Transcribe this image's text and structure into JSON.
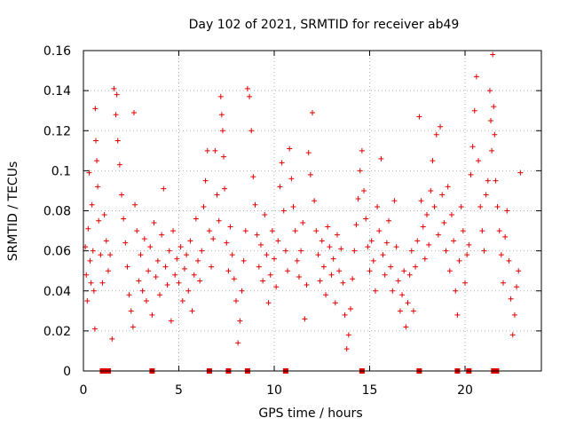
{
  "chart_data": {
    "type": "scatter",
    "title": "Day 102 of 2021, SRMTID for receiver ab49",
    "xlabel": "GPS time / hours",
    "ylabel": "SRMTID / TECUs",
    "xlim": [
      0,
      24
    ],
    "ylim": [
      0,
      0.16
    ],
    "x_ticks": [
      0,
      5,
      10,
      15,
      20
    ],
    "x_tick_labels": [
      "0",
      "5",
      "10",
      "15",
      "20"
    ],
    "y_ticks": [
      0,
      0.02,
      0.04,
      0.06,
      0.08,
      0.1,
      0.12,
      0.14,
      0.16
    ],
    "y_tick_labels": [
      "0",
      "0.02",
      "0.04",
      "0.06",
      "0.08",
      "0.1",
      "0.12",
      "0.14",
      "0.16"
    ],
    "grid": true,
    "marker": "+",
    "color": "#e00000",
    "series": [
      {
        "name": "SRMTID",
        "points": [
          [
            0.1,
            0.062
          ],
          [
            0.15,
            0.048
          ],
          [
            0.2,
            0.035
          ],
          [
            0.25,
            0.071
          ],
          [
            0.3,
            0.099
          ],
          [
            0.35,
            0.055
          ],
          [
            0.4,
            0.044
          ],
          [
            0.45,
            0.083
          ],
          [
            0.5,
            0.06
          ],
          [
            0.55,
            0.04
          ],
          [
            0.6,
            0.021
          ],
          [
            0.62,
            0.131
          ],
          [
            0.65,
            0.115
          ],
          [
            0.7,
            0.105
          ],
          [
            0.75,
            0.092
          ],
          [
            0.8,
            0.075
          ],
          [
            0.9,
            0.058
          ],
          [
            1.0,
            0.044
          ],
          [
            1.1,
            0.078
          ],
          [
            1.2,
            0.065
          ],
          [
            1.3,
            0.05
          ],
          [
            1.4,
            0.058
          ],
          [
            1.5,
            0.016
          ],
          [
            1.6,
            0.141
          ],
          [
            1.7,
            0.128
          ],
          [
            1.75,
            0.138
          ],
          [
            1.8,
            0.115
          ],
          [
            1.9,
            0.103
          ],
          [
            2.0,
            0.088
          ],
          [
            2.1,
            0.076
          ],
          [
            2.2,
            0.064
          ],
          [
            2.3,
            0.052
          ],
          [
            2.4,
            0.038
          ],
          [
            2.5,
            0.03
          ],
          [
            2.6,
            0.022
          ],
          [
            2.65,
            0.129
          ],
          [
            2.7,
            0.083
          ],
          [
            2.8,
            0.07
          ],
          [
            2.9,
            0.045
          ],
          [
            3.0,
            0.058
          ],
          [
            3.1,
            0.04
          ],
          [
            3.2,
            0.066
          ],
          [
            3.3,
            0.035
          ],
          [
            3.4,
            0.05
          ],
          [
            3.5,
            0.062
          ],
          [
            3.6,
            0.028
          ],
          [
            3.7,
            0.074
          ],
          [
            3.8,
            0.047
          ],
          [
            3.9,
            0.055
          ],
          [
            4.0,
            0.038
          ],
          [
            4.1,
            0.068
          ],
          [
            4.2,
            0.091
          ],
          [
            4.3,
            0.052
          ],
          [
            4.4,
            0.043
          ],
          [
            4.5,
            0.06
          ],
          [
            4.6,
            0.025
          ],
          [
            4.7,
            0.07
          ],
          [
            4.8,
            0.048
          ],
          [
            4.9,
            0.056
          ],
          [
            5.0,
            0.044
          ],
          [
            5.1,
            0.062
          ],
          [
            5.2,
            0.035
          ],
          [
            5.3,
            0.051
          ],
          [
            5.4,
            0.058
          ],
          [
            5.5,
            0.04
          ],
          [
            5.6,
            0.065
          ],
          [
            5.7,
            0.03
          ],
          [
            5.8,
            0.048
          ],
          [
            5.9,
            0.076
          ],
          [
            6.0,
            0.055
          ],
          [
            6.1,
            0.045
          ],
          [
            6.2,
            0.06
          ],
          [
            6.3,
            0.082
          ],
          [
            6.4,
            0.095
          ],
          [
            6.5,
            0.11
          ],
          [
            6.6,
            0.07
          ],
          [
            6.7,
            0.052
          ],
          [
            6.8,
            0.066
          ],
          [
            6.9,
            0.11
          ],
          [
            7.0,
            0.088
          ],
          [
            7.1,
            0.075
          ],
          [
            7.2,
            0.137
          ],
          [
            7.25,
            0.128
          ],
          [
            7.3,
            0.12
          ],
          [
            7.35,
            0.107
          ],
          [
            7.4,
            0.091
          ],
          [
            7.5,
            0.064
          ],
          [
            7.6,
            0.05
          ],
          [
            7.7,
            0.072
          ],
          [
            7.8,
            0.058
          ],
          [
            7.9,
            0.046
          ],
          [
            8.0,
            0.035
          ],
          [
            8.1,
            0.014
          ],
          [
            8.2,
            0.025
          ],
          [
            8.3,
            0.04
          ],
          [
            8.4,
            0.055
          ],
          [
            8.5,
            0.07
          ],
          [
            8.6,
            0.141
          ],
          [
            8.7,
            0.137
          ],
          [
            8.8,
            0.12
          ],
          [
            8.9,
            0.097
          ],
          [
            9.0,
            0.083
          ],
          [
            9.1,
            0.068
          ],
          [
            9.2,
            0.052
          ],
          [
            9.3,
            0.063
          ],
          [
            9.4,
            0.045
          ],
          [
            9.5,
            0.078
          ],
          [
            9.6,
            0.058
          ],
          [
            9.7,
            0.034
          ],
          [
            9.8,
            0.048
          ],
          [
            9.9,
            0.07
          ],
          [
            10.0,
            0.056
          ],
          [
            10.1,
            0.042
          ],
          [
            10.2,
            0.065
          ],
          [
            10.3,
            0.092
          ],
          [
            10.4,
            0.104
          ],
          [
            10.5,
            0.08
          ],
          [
            10.6,
            0.06
          ],
          [
            10.7,
            0.05
          ],
          [
            10.8,
            0.111
          ],
          [
            10.9,
            0.096
          ],
          [
            11.0,
            0.082
          ],
          [
            11.1,
            0.07
          ],
          [
            11.2,
            0.055
          ],
          [
            11.3,
            0.047
          ],
          [
            11.4,
            0.06
          ],
          [
            11.5,
            0.074
          ],
          [
            11.6,
            0.026
          ],
          [
            11.7,
            0.043
          ],
          [
            11.8,
            0.109
          ],
          [
            11.9,
            0.098
          ],
          [
            12.0,
            0.129
          ],
          [
            12.1,
            0.085
          ],
          [
            12.2,
            0.07
          ],
          [
            12.3,
            0.058
          ],
          [
            12.4,
            0.045
          ],
          [
            12.5,
            0.065
          ],
          [
            12.6,
            0.052
          ],
          [
            12.7,
            0.038
          ],
          [
            12.8,
            0.072
          ],
          [
            12.9,
            0.062
          ],
          [
            13.0,
            0.048
          ],
          [
            13.1,
            0.056
          ],
          [
            13.2,
            0.034
          ],
          [
            13.3,
            0.068
          ],
          [
            13.4,
            0.05
          ],
          [
            13.5,
            0.061
          ],
          [
            13.6,
            0.044
          ],
          [
            13.7,
            0.028
          ],
          [
            13.8,
            0.011
          ],
          [
            13.9,
            0.018
          ],
          [
            14.0,
            0.031
          ],
          [
            14.1,
            0.046
          ],
          [
            14.2,
            0.06
          ],
          [
            14.3,
            0.073
          ],
          [
            14.4,
            0.086
          ],
          [
            14.5,
            0.1
          ],
          [
            14.6,
            0.11
          ],
          [
            14.7,
            0.09
          ],
          [
            14.8,
            0.076
          ],
          [
            14.9,
            0.062
          ],
          [
            15.0,
            0.05
          ],
          [
            15.1,
            0.065
          ],
          [
            15.2,
            0.055
          ],
          [
            15.3,
            0.04
          ],
          [
            15.4,
            0.082
          ],
          [
            15.5,
            0.07
          ],
          [
            15.6,
            0.106
          ],
          [
            15.7,
            0.058
          ],
          [
            15.8,
            0.048
          ],
          [
            15.9,
            0.064
          ],
          [
            16.0,
            0.075
          ],
          [
            16.1,
            0.052
          ],
          [
            16.2,
            0.04
          ],
          [
            16.3,
            0.085
          ],
          [
            16.4,
            0.062
          ],
          [
            16.5,
            0.045
          ],
          [
            16.6,
            0.03
          ],
          [
            16.7,
            0.038
          ],
          [
            16.8,
            0.05
          ],
          [
            16.9,
            0.022
          ],
          [
            17.0,
            0.034
          ],
          [
            17.1,
            0.048
          ],
          [
            17.2,
            0.06
          ],
          [
            17.3,
            0.03
          ],
          [
            17.4,
            0.052
          ],
          [
            17.5,
            0.065
          ],
          [
            17.6,
            0.127
          ],
          [
            17.7,
            0.085
          ],
          [
            17.8,
            0.072
          ],
          [
            17.9,
            0.056
          ],
          [
            18.0,
            0.078
          ],
          [
            18.1,
            0.063
          ],
          [
            18.2,
            0.09
          ],
          [
            18.3,
            0.105
          ],
          [
            18.4,
            0.082
          ],
          [
            18.5,
            0.118
          ],
          [
            18.6,
            0.068
          ],
          [
            18.7,
            0.122
          ],
          [
            18.8,
            0.088
          ],
          [
            18.9,
            0.074
          ],
          [
            19.0,
            0.06
          ],
          [
            19.1,
            0.092
          ],
          [
            19.2,
            0.05
          ],
          [
            19.3,
            0.078
          ],
          [
            19.4,
            0.065
          ],
          [
            19.5,
            0.04
          ],
          [
            19.6,
            0.028
          ],
          [
            19.7,
            0.055
          ],
          [
            19.8,
            0.082
          ],
          [
            19.9,
            0.07
          ],
          [
            20.0,
            0.044
          ],
          [
            20.1,
            0.058
          ],
          [
            20.2,
            0.063
          ],
          [
            20.3,
            0.098
          ],
          [
            20.4,
            0.112
          ],
          [
            20.5,
            0.13
          ],
          [
            20.6,
            0.147
          ],
          [
            20.7,
            0.105
          ],
          [
            20.8,
            0.082
          ],
          [
            20.9,
            0.07
          ],
          [
            21.0,
            0.06
          ],
          [
            21.1,
            0.088
          ],
          [
            21.2,
            0.095
          ],
          [
            21.3,
            0.14
          ],
          [
            21.35,
            0.125
          ],
          [
            21.4,
            0.11
          ],
          [
            21.45,
            0.158
          ],
          [
            21.5,
            0.132
          ],
          [
            21.55,
            0.118
          ],
          [
            21.6,
            0.095
          ],
          [
            21.7,
            0.082
          ],
          [
            21.8,
            0.07
          ],
          [
            21.9,
            0.058
          ],
          [
            22.0,
            0.044
          ],
          [
            22.1,
            0.067
          ],
          [
            22.2,
            0.08
          ],
          [
            22.3,
            0.055
          ],
          [
            22.4,
            0.036
          ],
          [
            22.5,
            0.018
          ],
          [
            22.6,
            0.028
          ],
          [
            22.7,
            0.042
          ],
          [
            22.8,
            0.05
          ],
          [
            22.9,
            0.099
          ]
        ]
      }
    ],
    "baseline_markers_x": [
      1.0,
      1.15,
      1.3,
      3.6,
      6.6,
      7.6,
      8.6,
      10.6,
      14.6,
      17.6,
      19.6,
      20.2,
      21.5,
      21.65
    ]
  }
}
